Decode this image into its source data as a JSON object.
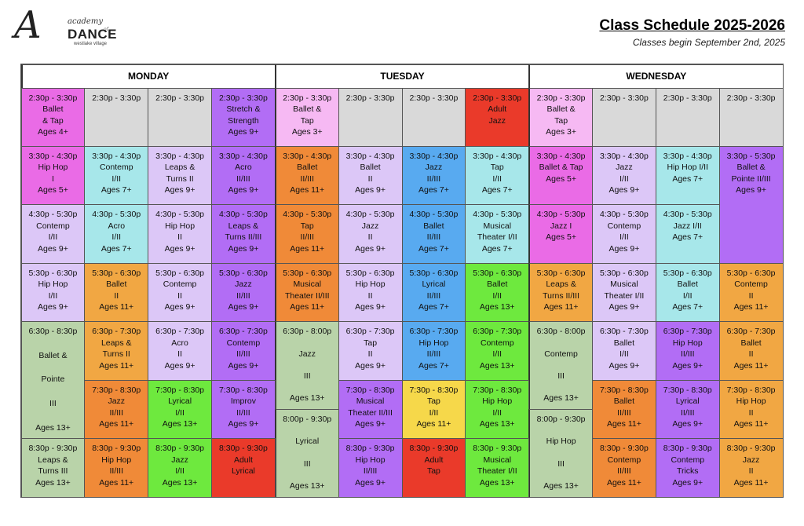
{
  "header": {
    "logo": {
      "monogram": "A",
      "academy": "academy",
      "of": "of",
      "dance": "DANCE",
      "sub": "westlake village"
    },
    "title": "Class Schedule 2025-2026",
    "subtitle": "Classes begin September 2nd, 2025"
  },
  "days": [
    "MONDAY",
    "TUESDAY",
    "WEDNESDAY"
  ],
  "colors": {
    "pink": "#ea6be6",
    "light_pink": "#f6b9f3",
    "gray": "#d9d9d9",
    "lavender": "#dcc7f7",
    "purple": "#b26df5",
    "cyan": "#a7e7ea",
    "sage": "#b9d3a9",
    "orange": "#f08a38",
    "light_orange": "#f1a743",
    "blue": "#58aaf0",
    "red": "#ea3a2a",
    "green": "#6ee93e",
    "yellow": "#f6d84a"
  },
  "classes": [
    {
      "l": [
        "2:30p - 3:30p",
        "Ballet",
        "& Tap",
        "Ages 4+"
      ]
    },
    {
      "l": [
        "2:30p - 3:30p"
      ]
    },
    {
      "l": [
        "2:30p - 3:30p"
      ]
    },
    {
      "l": [
        "2:30p - 3:30p",
        "Stretch &",
        "Strength",
        "Ages 9+"
      ]
    },
    {
      "l": [
        "2:30p - 3:30p",
        "Ballet &",
        "Tap",
        "Ages 3+"
      ]
    },
    {
      "l": [
        "2:30p - 3:30p"
      ]
    },
    {
      "l": [
        "2:30p - 3:30p"
      ]
    },
    {
      "l": [
        "2:30p - 3:30p",
        "Adult",
        "Jazz"
      ]
    },
    {
      "l": [
        "2:30p - 3:30p",
        "Ballet &",
        "Tap",
        "Ages 3+"
      ]
    },
    {
      "l": [
        "2:30p - 3:30p"
      ]
    },
    {
      "l": [
        "2:30p - 3:30p"
      ]
    },
    {
      "l": [
        "2:30p - 3:30p"
      ]
    },
    {
      "l": [
        "3:30p - 4:30p",
        "Hip Hop",
        "I",
        "Ages 5+"
      ]
    },
    {
      "l": [
        "3:30p - 4:30p",
        "Contemp",
        "I/II",
        "Ages 7+"
      ]
    },
    {
      "l": [
        "3:30p - 4:30p",
        "Leaps &",
        "Turns II",
        "Ages 9+"
      ]
    },
    {
      "l": [
        "3:30p - 4:30p",
        "Acro",
        "II/III",
        "Ages 9+"
      ]
    },
    {
      "l": [
        "3:30p - 4:30p",
        "Ballet",
        "II/III",
        "Ages 11+"
      ]
    },
    {
      "l": [
        "3:30p - 4:30p",
        "Ballet",
        "II",
        "Ages 9+"
      ]
    },
    {
      "l": [
        "3:30p - 4:30p",
        "Jazz",
        "II/III",
        "Ages 7+"
      ]
    },
    {
      "l": [
        "3:30p - 4:30p",
        "Tap",
        "I/II",
        "Ages 7+"
      ]
    },
    {
      "l": [
        "3:30p - 4:30p",
        "Ballet & Tap",
        "Ages 5+"
      ]
    },
    {
      "l": [
        "3:30p - 4:30p",
        "Jazz",
        "I/II",
        "Ages 9+"
      ]
    },
    {
      "l": [
        "3:30p - 4:30p",
        "Hip Hop I/II",
        "Ages 7+"
      ]
    },
    {
      "l": [
        "3:30p - 5:30p",
        "Ballet &",
        "Pointe II/III",
        "Ages 9+"
      ]
    },
    {
      "l": [
        "4:30p - 5:30p",
        "Contemp",
        "I/II",
        "Ages 9+"
      ]
    },
    {
      "l": [
        "4:30p - 5:30p",
        "Acro",
        "I/II",
        "Ages 7+"
      ]
    },
    {
      "l": [
        "4:30p - 5:30p",
        "Hip Hop",
        "II",
        "Ages 9+"
      ]
    },
    {
      "l": [
        "4:30p - 5:30p",
        "Leaps &",
        "Turns II/III",
        "Ages 9+"
      ]
    },
    {
      "l": [
        "4:30p - 5:30p",
        "Tap",
        "II/III",
        "Ages 11+"
      ]
    },
    {
      "l": [
        "4:30p - 5:30p",
        "Jazz",
        "II",
        "Ages 9+"
      ]
    },
    {
      "l": [
        "4:30p - 5:30p",
        "Ballet",
        "II/III",
        "Ages 7+"
      ]
    },
    {
      "l": [
        "4:30p - 5:30p",
        "Musical",
        "Theater I/II",
        "Ages 7+"
      ]
    },
    {
      "l": [
        "4:30p - 5:30p",
        "Jazz I",
        "Ages 5+"
      ]
    },
    {
      "l": [
        "4:30p - 5:30p",
        "Contemp",
        "I/II",
        "Ages 9+"
      ]
    },
    {
      "l": [
        "4:30p - 5:30p",
        "Jazz I/II",
        "Ages 7+"
      ]
    },
    {
      "l": [
        "5:30p - 6:30p",
        "Hip Hop",
        "I/II",
        "Ages 9+"
      ]
    },
    {
      "l": [
        "5:30p - 6:30p",
        "Ballet",
        "II",
        "Ages 11+"
      ]
    },
    {
      "l": [
        "5:30p - 6:30p",
        "Contemp",
        "II",
        "Ages 9+"
      ]
    },
    {
      "l": [
        "5:30p - 6:30p",
        "Jazz",
        "II/III",
        "Ages 9+"
      ]
    },
    {
      "l": [
        "5:30p - 6:30p",
        "Musical",
        "Theater II/III",
        "Ages 11+"
      ]
    },
    {
      "l": [
        "5:30p - 6:30p",
        "Hip Hop",
        "II",
        "Ages 9+"
      ]
    },
    {
      "l": [
        "5:30p - 6:30p",
        "Lyrical",
        "II/III",
        "Ages 7+"
      ]
    },
    {
      "l": [
        "5:30p - 6:30p",
        "Ballet",
        "I/II",
        "Ages 13+"
      ]
    },
    {
      "l": [
        "5:30p - 6:30p",
        "Leaps &",
        "Turns II/III",
        "Ages 11+"
      ]
    },
    {
      "l": [
        "5:30p - 6:30p",
        "Musical",
        "Theater I/II",
        "Ages 9+"
      ]
    },
    {
      "l": [
        "5:30p - 6:30p",
        "Ballet",
        "I/II",
        "Ages 7+"
      ]
    },
    {
      "l": [
        "5:30p - 6:30p",
        "Contemp",
        "II",
        "Ages 11+"
      ]
    },
    {
      "l": [
        "6:30p - 8:30p",
        "Ballet &",
        "Pointe",
        "III",
        "Ages 13+"
      ]
    },
    {
      "l": [
        "6:30p - 7:30p",
        "Leaps &",
        "Turns II",
        "Ages 11+"
      ]
    },
    {
      "l": [
        "6:30p - 7:30p",
        "Acro",
        "II",
        "Ages 9+"
      ]
    },
    {
      "l": [
        "6:30p - 7:30p",
        "Contemp",
        "II/III",
        "Ages 9+"
      ]
    },
    {
      "l": [
        "6:30p - 8:00p",
        "Jazz",
        "III",
        "Ages 13+"
      ]
    },
    {
      "l": [
        "6:30p - 7:30p",
        "Tap",
        "II",
        "Ages 9+"
      ]
    },
    {
      "l": [
        "6:30p - 7:30p",
        "Hip Hop",
        "II/III",
        "Ages 7+"
      ]
    },
    {
      "l": [
        "6:30p - 7:30p",
        "Contemp",
        "I/II",
        "Ages 13+"
      ]
    },
    {
      "l": [
        "6:30p - 8:00p",
        "Contemp",
        "III",
        "Ages 13+"
      ]
    },
    {
      "l": [
        "6:30p - 7:30p",
        "Ballet",
        "I/II",
        "Ages 9+"
      ]
    },
    {
      "l": [
        "6:30p - 7:30p",
        "Hip Hop",
        "II/III",
        "Ages 9+"
      ]
    },
    {
      "l": [
        "6:30p - 7:30p",
        "Ballet",
        "II",
        "Ages 11+"
      ]
    },
    {
      "l": [
        "7:30p - 8:30p",
        "Jazz",
        "II/III",
        "Ages 11+"
      ]
    },
    {
      "l": [
        "7:30p - 8:30p",
        "Lyrical",
        "I/II",
        "Ages 13+"
      ]
    },
    {
      "l": [
        "7:30p - 8:30p",
        "Improv",
        "II/III",
        "Ages 9+"
      ]
    },
    {
      "l": [
        "7:30p - 8:30p",
        "Musical",
        "Theater II/III",
        "Ages 9+"
      ]
    },
    {
      "l": [
        "7:30p - 8:30p",
        "Tap",
        "I/II",
        "Ages 11+"
      ]
    },
    {
      "l": [
        "7:30p - 8:30p",
        "Hip Hop",
        "I/II",
        "Ages 13+"
      ]
    },
    {
      "l": [
        "7:30p - 8:30p",
        "Ballet",
        "II/III",
        "Ages 11+"
      ]
    },
    {
      "l": [
        "7:30p - 8:30p",
        "Lyrical",
        "II/III",
        "Ages 9+"
      ]
    },
    {
      "l": [
        "7:30p - 8:30p",
        "Hip Hop",
        "II",
        "Ages 11+"
      ]
    },
    {
      "l": [
        "8:00p - 9:30p",
        "Lyrical",
        "III",
        "Ages 13+"
      ]
    },
    {
      "l": [
        "8:00p - 9:30p",
        "Hip Hop",
        "III",
        "Ages 13+"
      ]
    },
    {
      "l": [
        "8:30p - 9:30p",
        "Leaps &",
        "Turns III",
        "Ages 13+"
      ]
    },
    {
      "l": [
        "8:30p - 9:30p",
        "Hip Hop",
        "II/III",
        "Ages 11+"
      ]
    },
    {
      "l": [
        "8:30p - 9:30p",
        "Jazz",
        "I/II",
        "Ages 13+"
      ]
    },
    {
      "l": [
        "8:30p - 9:30p",
        "Adult",
        "Lyrical"
      ]
    },
    {
      "l": [
        "8:30p - 9:30p",
        "Hip Hop",
        "II/III",
        "Ages 9+"
      ]
    },
    {
      "l": [
        "8:30p - 9:30p",
        "Adult",
        "Tap"
      ]
    },
    {
      "l": [
        "8:30p - 9:30p",
        "Musical",
        "Theater I/II",
        "Ages 13+"
      ]
    },
    {
      "l": [
        "8:30p - 9:30p",
        "Contemp",
        "II/III",
        "Ages 11+"
      ]
    },
    {
      "l": [
        "8:30p - 9:30p",
        "Contemp",
        "Tricks",
        "Ages 9+"
      ]
    },
    {
      "l": [
        "8:30p - 9:30p",
        "Jazz",
        "II",
        "Ages 11+"
      ]
    }
  ]
}
